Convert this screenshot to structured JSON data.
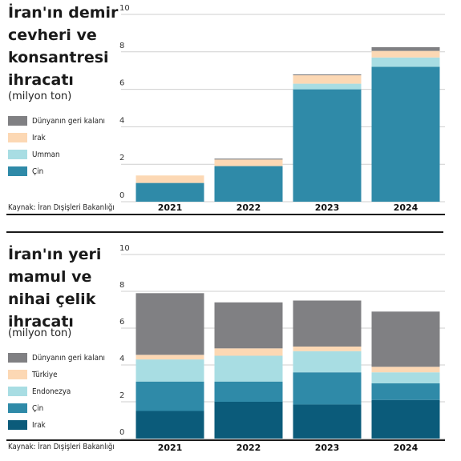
{
  "chart_data": [
    {
      "type": "bar",
      "stacked": true,
      "title": "İran'ın demir cevheri ve konsantresi ihracatı",
      "subtitle": "(milyon ton)",
      "source": "Kaynak: İran Dışişleri Bakanlığı",
      "categories": [
        "2021",
        "2022",
        "2023",
        "2024"
      ],
      "ylim": [
        0,
        10
      ],
      "yticks": [
        "0",
        "2",
        "4",
        "6",
        "8",
        "10"
      ],
      "grid": true,
      "series": [
        {
          "name": "Çin",
          "color": "#2f8aa8",
          "values": [
            1.0,
            1.9,
            6.0,
            7.2
          ]
        },
        {
          "name": "Umman",
          "color": "#a8dde3",
          "values": [
            0.0,
            0.0,
            0.3,
            0.5
          ]
        },
        {
          "name": "Irak",
          "color": "#fcd8b4",
          "values": [
            0.4,
            0.35,
            0.45,
            0.35
          ]
        },
        {
          "name": "Dünyanın geri kalanı",
          "color": "#808083",
          "values": [
            0.0,
            0.05,
            0.05,
            0.2
          ]
        }
      ]
    },
    {
      "type": "bar",
      "stacked": true,
      "title": "İran'ın yeri mamul ve nihai çelik ihracatı",
      "subtitle": "(milyon ton)",
      "source": "Kaynak: İran Dışişleri Bakanlığı",
      "categories": [
        "2021",
        "2022",
        "2023",
        "2024"
      ],
      "ylim": [
        0,
        10
      ],
      "yticks": [
        "0",
        "2",
        "4",
        "6",
        "8",
        "10"
      ],
      "grid": true,
      "series": [
        {
          "name": "Irak",
          "color": "#0b5b7a",
          "values": [
            1.5,
            2.0,
            1.85,
            2.1
          ]
        },
        {
          "name": "Çin",
          "color": "#2f8aa8",
          "values": [
            1.6,
            1.1,
            1.75,
            0.9
          ]
        },
        {
          "name": "Endonezya",
          "color": "#a8dde3",
          "values": [
            1.2,
            1.4,
            1.15,
            0.6
          ]
        },
        {
          "name": "Türkiye",
          "color": "#fcd8b4",
          "values": [
            0.25,
            0.4,
            0.25,
            0.3
          ]
        },
        {
          "name": "Dünyanın geri kalanı",
          "color": "#808083",
          "values": [
            3.35,
            2.5,
            2.5,
            3.0
          ]
        }
      ]
    }
  ]
}
